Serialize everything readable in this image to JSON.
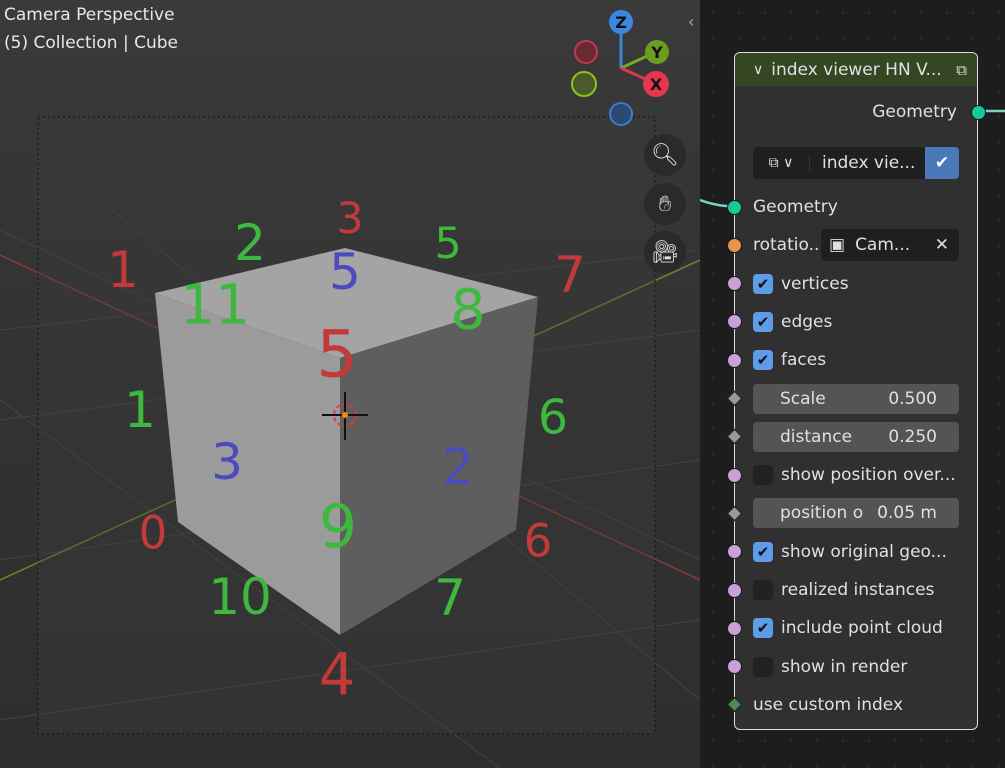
{
  "viewport": {
    "title": "Camera Perspective",
    "subtitle": "(5) Collection | Cube",
    "gizmo": {
      "z": "Z",
      "y": "Y",
      "x": "X"
    },
    "labels": [
      {
        "t": "1",
        "c": "#c23a3a"
      },
      {
        "t": "2",
        "c": "#3fb83f"
      },
      {
        "t": "3",
        "c": "#c23a3a"
      },
      {
        "t": "5",
        "c": "#4b4bbd"
      },
      {
        "t": "5",
        "c": "#3fb83f"
      },
      {
        "t": "7",
        "c": "#c23a3a"
      },
      {
        "t": "11",
        "c": "#3fb83f"
      },
      {
        "t": "8",
        "c": "#3fb83f"
      },
      {
        "t": "5",
        "c": "#c23a3a"
      },
      {
        "t": "1",
        "c": "#3fb83f"
      },
      {
        "t": "6",
        "c": "#3fb83f"
      },
      {
        "t": "3",
        "c": "#4b4bbd"
      },
      {
        "t": "2",
        "c": "#4b4bbd"
      },
      {
        "t": "0",
        "c": "#c23a3a"
      },
      {
        "t": "9",
        "c": "#3fb83f"
      },
      {
        "t": "6",
        "c": "#c23a3a"
      },
      {
        "t": "10",
        "c": "#3fb83f"
      },
      {
        "t": "7",
        "c": "#3fb83f"
      },
      {
        "t": "4",
        "c": "#c23a3a"
      }
    ]
  },
  "node": {
    "title": "index viewer HN V...",
    "output": "Geometry",
    "group_name": "index vie...",
    "geometry": "Geometry",
    "rotation_label": "rotatio...",
    "rotation_value": "Cam...",
    "vertices": "vertices",
    "edges": "edges",
    "faces": "faces",
    "scale_label": "Scale",
    "scale_value": "0.500",
    "distance_label": "distance",
    "distance_value": "0.250",
    "show_position": "show position over...",
    "position_label": "position o",
    "position_value": "0.05 m",
    "show_original": "show original geo...",
    "realized": "realized instances",
    "point_cloud": "include point cloud",
    "show_render": "show in render",
    "custom_index": "use custom index",
    "checks": {
      "vertices": true,
      "edges": true,
      "faces": true,
      "show_position": false,
      "show_original": true,
      "realized": false,
      "point_cloud": true,
      "show_render": false
    }
  }
}
